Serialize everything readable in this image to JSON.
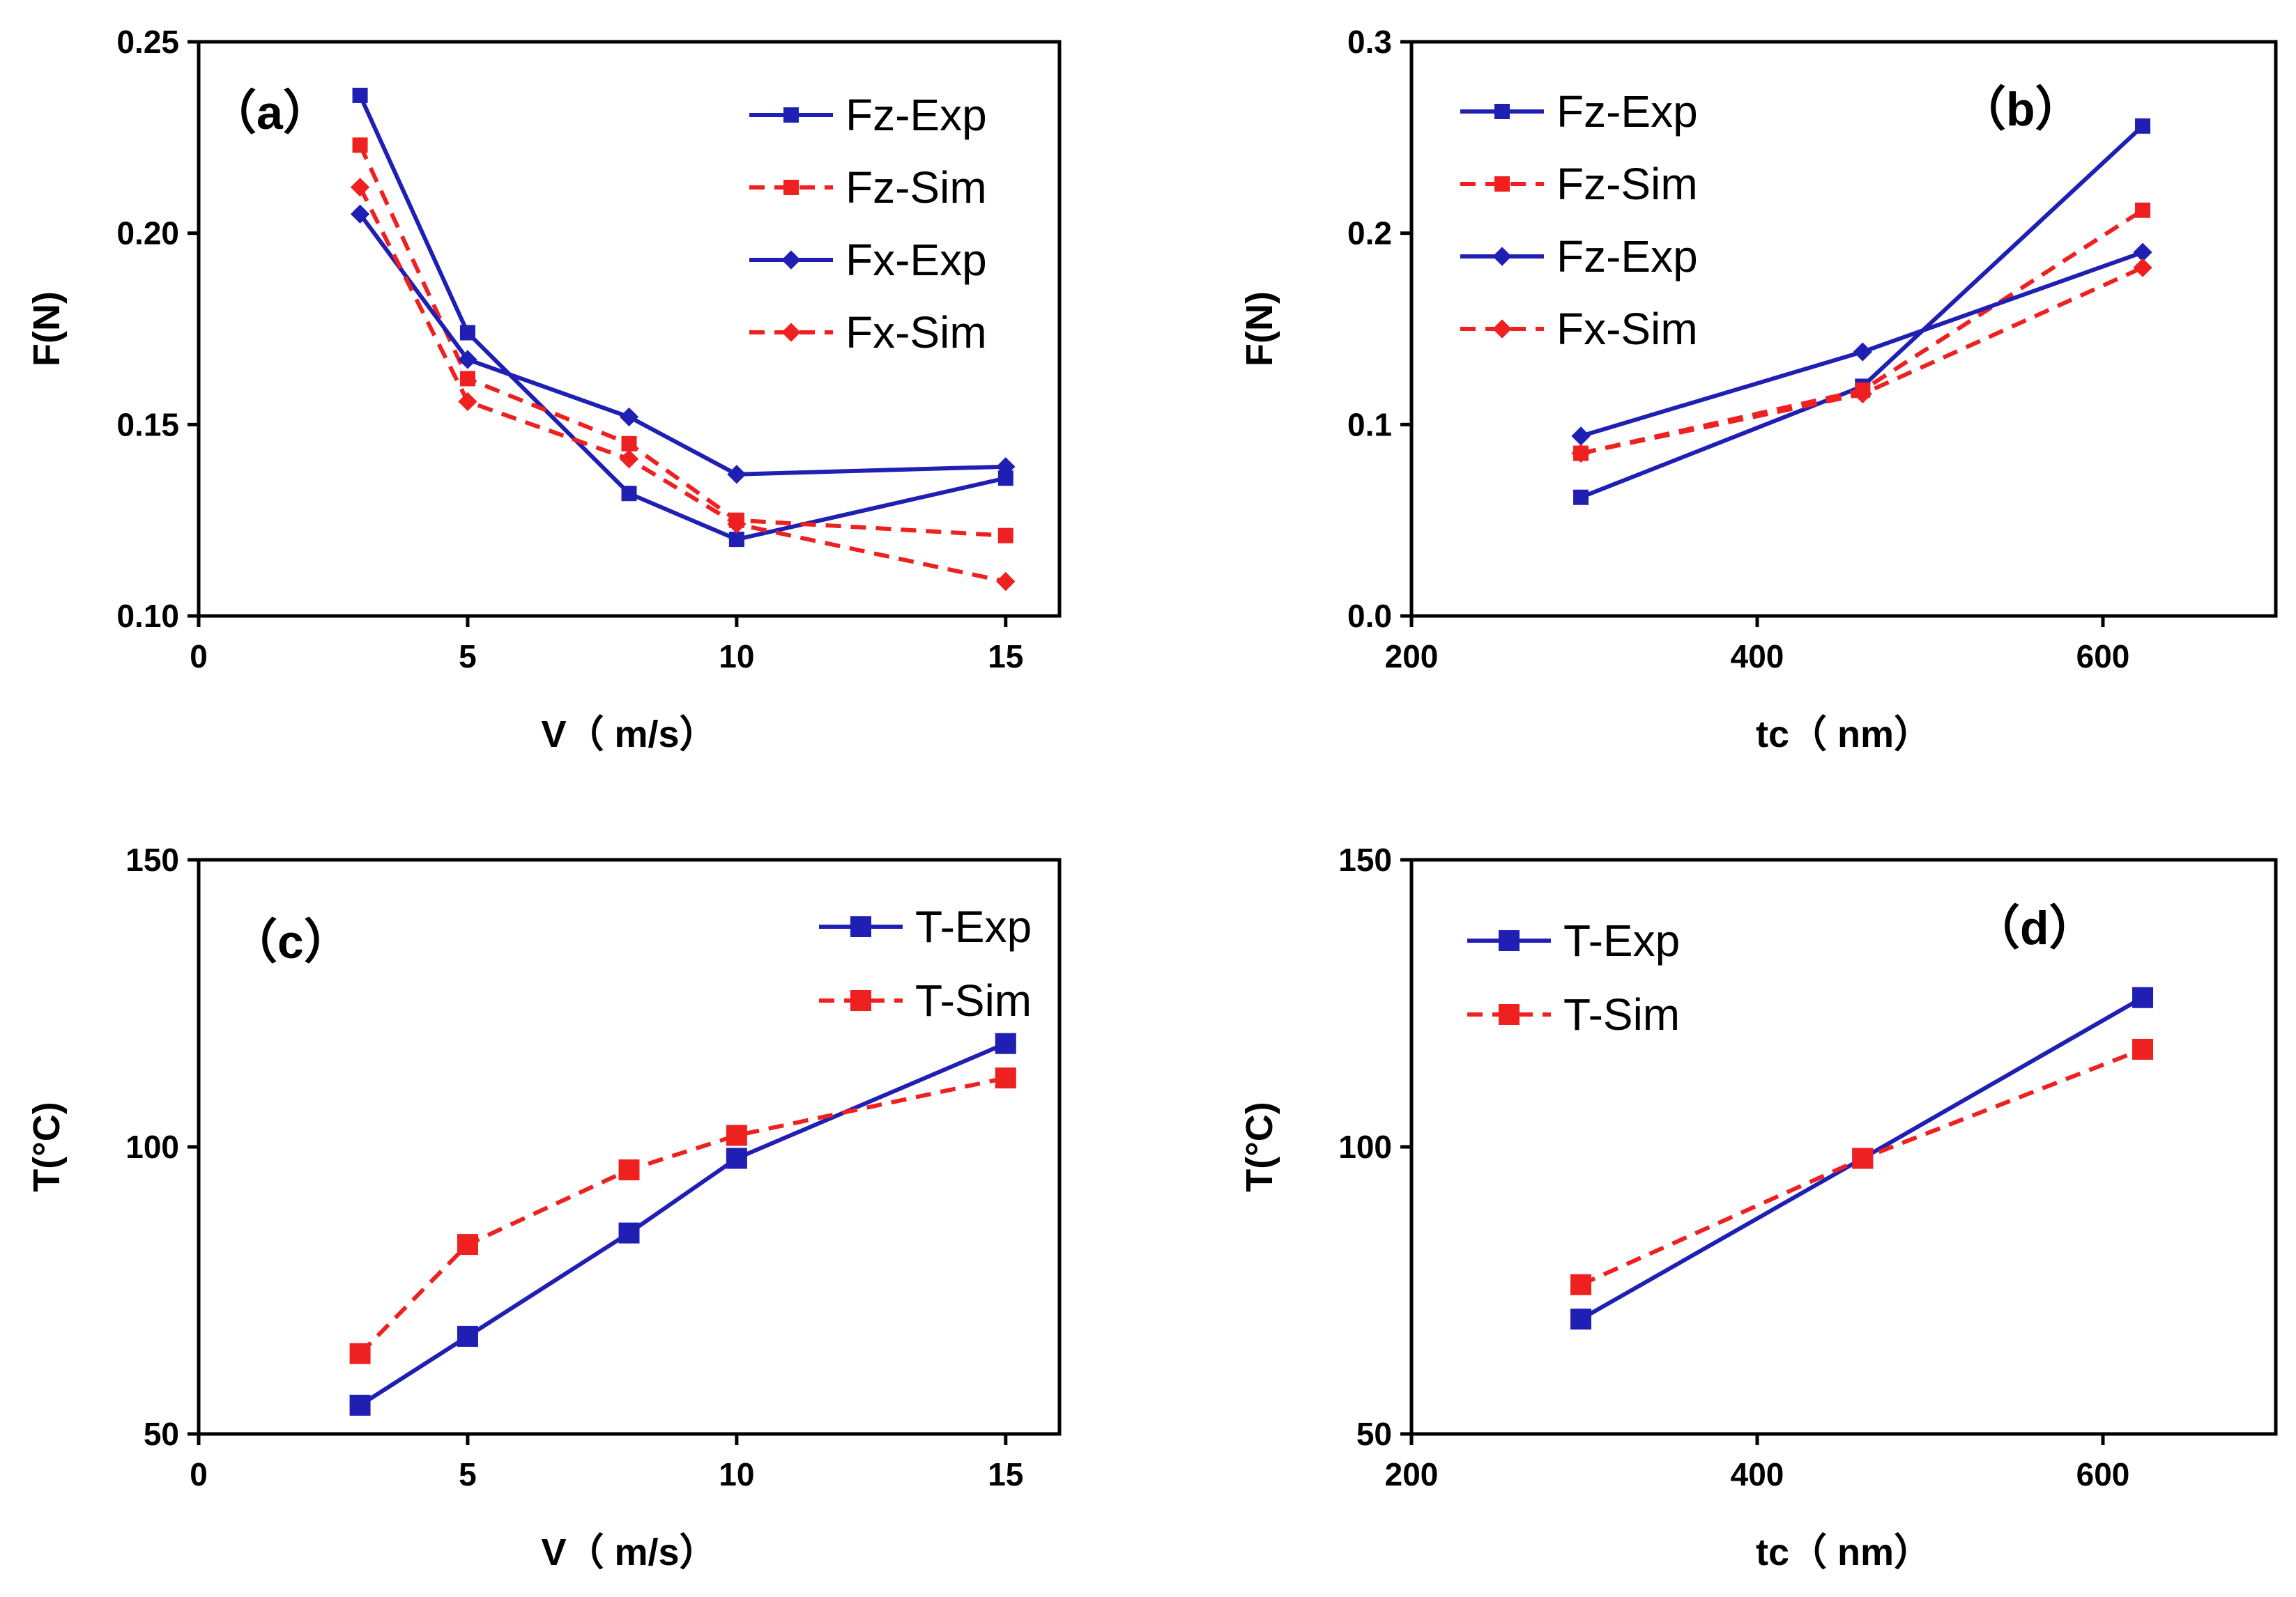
{
  "colors": {
    "exp": "#1f1fb3",
    "sim": "#ee2020"
  },
  "chart_data": [
    {
      "id": "a",
      "type": "line",
      "panel_label": "（a）",
      "xlabel": "V（ m/s）",
      "ylabel": "F(N)",
      "xlim": [
        0,
        16
      ],
      "ylim": [
        0.1,
        0.25
      ],
      "xticks": [
        0,
        5,
        10,
        15
      ],
      "yticks": [
        0.1,
        0.15,
        0.2,
        0.25
      ],
      "ytick_labels": [
        "0.10",
        "0.15",
        "0.20",
        "0.25"
      ],
      "legend_position": "top-right",
      "x": [
        3,
        5,
        8,
        10,
        15
      ],
      "series": [
        {
          "name": "Fz-Exp",
          "marker": "square",
          "style": "solid",
          "color": "exp",
          "values": [
            0.236,
            0.174,
            0.132,
            0.12,
            0.136
          ]
        },
        {
          "name": "Fz-Sim",
          "marker": "square",
          "style": "dashed",
          "color": "sim",
          "values": [
            0.223,
            0.162,
            0.145,
            0.125,
            0.121
          ]
        },
        {
          "name": "Fx-Exp",
          "marker": "diamond",
          "style": "solid",
          "color": "exp",
          "values": [
            0.205,
            0.167,
            0.152,
            0.137,
            0.139
          ]
        },
        {
          "name": "Fx-Sim",
          "marker": "diamond",
          "style": "dashed",
          "color": "sim",
          "values": [
            0.212,
            0.156,
            0.141,
            0.124,
            0.109
          ]
        }
      ]
    },
    {
      "id": "b",
      "type": "line",
      "panel_label": "（b）",
      "xlabel": "tc（ nm）",
      "ylabel": "F(N)",
      "xlim": [
        200,
        700
      ],
      "ylim": [
        0.0,
        0.3
      ],
      "xticks": [
        200,
        400,
        600
      ],
      "yticks": [
        0.0,
        0.1,
        0.2,
        0.3
      ],
      "ytick_labels": [
        "0.0",
        "0.1",
        "0.2",
        "0.3"
      ],
      "legend_position": "top-left",
      "x": [
        298,
        461,
        623
      ],
      "series": [
        {
          "name": "Fz-Exp",
          "marker": "square",
          "style": "solid",
          "color": "exp",
          "values": [
            0.062,
            0.12,
            0.256
          ]
        },
        {
          "name": "Fz-Sim",
          "marker": "square",
          "style": "dashed",
          "color": "sim",
          "values": [
            0.085,
            0.118,
            0.212
          ]
        },
        {
          "name": "Fz-Exp",
          "marker": "diamond",
          "style": "solid",
          "color": "exp",
          "values": [
            0.094,
            0.138,
            0.19
          ]
        },
        {
          "name": "Fx-Sim",
          "marker": "diamond",
          "style": "dashed",
          "color": "sim",
          "values": [
            0.085,
            0.116,
            0.182
          ]
        }
      ]
    },
    {
      "id": "c",
      "type": "line",
      "panel_label": "（c）",
      "xlabel": "V（ m/s）",
      "ylabel": "T(°C)",
      "xlim": [
        0,
        16
      ],
      "ylim": [
        50,
        150
      ],
      "xticks": [
        0,
        5,
        10,
        15
      ],
      "yticks": [
        50,
        100,
        150
      ],
      "ytick_labels": [
        "50",
        "100",
        "150"
      ],
      "legend_position": "top-right",
      "x": [
        3,
        5,
        8,
        10,
        15
      ],
      "series": [
        {
          "name": "T-Exp",
          "marker": "square",
          "style": "solid",
          "color": "exp",
          "values": [
            55,
            67,
            85,
            98,
            118
          ]
        },
        {
          "name": "T-Sim",
          "marker": "square",
          "style": "dashed",
          "color": "sim",
          "values": [
            64,
            83,
            96,
            102,
            112
          ]
        }
      ]
    },
    {
      "id": "d",
      "type": "line",
      "panel_label": "（d）",
      "xlabel": "tc（ nm）",
      "ylabel": "T(°C)",
      "xlim": [
        200,
        700
      ],
      "ylim": [
        50,
        150
      ],
      "xticks": [
        200,
        400,
        600
      ],
      "yticks": [
        50,
        100,
        150
      ],
      "ytick_labels": [
        "50",
        "100",
        "150"
      ],
      "legend_position": "top-left",
      "x": [
        298,
        461,
        623
      ],
      "series": [
        {
          "name": "T-Exp",
          "marker": "square",
          "style": "solid",
          "color": "exp",
          "values": [
            70,
            98,
            126
          ]
        },
        {
          "name": "T-Sim",
          "marker": "square",
          "style": "dashed",
          "color": "sim",
          "values": [
            76,
            98,
            117
          ]
        }
      ]
    }
  ]
}
